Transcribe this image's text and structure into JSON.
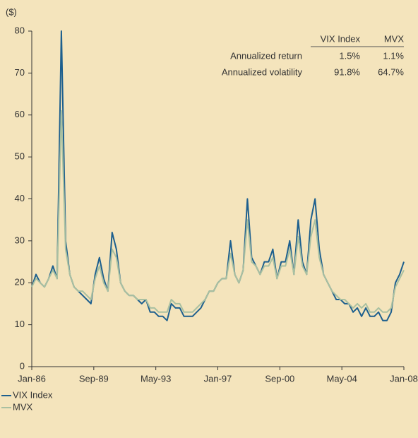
{
  "chart_data": {
    "type": "line",
    "ylabel": "($)",
    "x": [
      "1986-01",
      "1986-04",
      "1986-07",
      "1986-10",
      "1987-01",
      "1987-04",
      "1987-07",
      "1987-10",
      "1988-01",
      "1988-04",
      "1988-07",
      "1988-10",
      "1989-01",
      "1989-04",
      "1989-07",
      "1989-10",
      "1990-01",
      "1990-04",
      "1990-07",
      "1990-10",
      "1991-01",
      "1991-04",
      "1991-07",
      "1991-10",
      "1992-01",
      "1992-04",
      "1992-07",
      "1992-10",
      "1993-01",
      "1993-04",
      "1993-07",
      "1993-10",
      "1994-01",
      "1994-04",
      "1994-07",
      "1994-10",
      "1995-01",
      "1995-04",
      "1995-07",
      "1995-10",
      "1996-01",
      "1996-04",
      "1996-07",
      "1996-10",
      "1997-01",
      "1997-04",
      "1997-07",
      "1997-10",
      "1998-01",
      "1998-04",
      "1998-07",
      "1998-10",
      "1999-01",
      "1999-04",
      "1999-07",
      "1999-10",
      "2000-01",
      "2000-04",
      "2000-07",
      "2000-10",
      "2001-01",
      "2001-04",
      "2001-07",
      "2001-10",
      "2002-01",
      "2002-04",
      "2002-07",
      "2002-10",
      "2003-01",
      "2003-04",
      "2003-07",
      "2003-10",
      "2004-01",
      "2004-04",
      "2004-07",
      "2004-10",
      "2005-01",
      "2005-04",
      "2005-07",
      "2005-10",
      "2006-01",
      "2006-04",
      "2006-07",
      "2006-10",
      "2007-01",
      "2007-04",
      "2007-07",
      "2007-10",
      "2008-01"
    ],
    "series": [
      {
        "name": "VIX Index",
        "color": "#1d5f8e",
        "values": [
          19,
          22,
          20,
          19,
          21,
          24,
          21,
          80,
          30,
          22,
          19,
          18,
          17,
          16,
          15,
          22,
          26,
          21,
          18,
          32,
          28,
          20,
          18,
          17,
          17,
          16,
          15,
          16,
          13,
          13,
          12,
          12,
          11,
          15,
          14,
          14,
          12,
          12,
          12,
          13,
          14,
          16,
          18,
          18,
          20,
          21,
          21,
          30,
          22,
          20,
          23,
          40,
          26,
          24,
          22,
          25,
          25,
          28,
          21,
          25,
          25,
          30,
          22,
          35,
          25,
          22,
          35,
          40,
          28,
          22,
          20,
          18,
          16,
          16,
          15,
          15,
          13,
          14,
          12,
          14,
          12,
          12,
          13,
          11,
          11,
          13,
          20,
          22,
          25
        ]
      },
      {
        "name": "MVX",
        "color": "#a9c0a1",
        "values": [
          19,
          21,
          20,
          19,
          21,
          23,
          21,
          61,
          28,
          22,
          19,
          18,
          18,
          17,
          16,
          21,
          24,
          20,
          18,
          28,
          26,
          20,
          18,
          17,
          17,
          16,
          16,
          16,
          14,
          14,
          13,
          13,
          13,
          16,
          15,
          15,
          13,
          13,
          13,
          14,
          15,
          16,
          18,
          18,
          20,
          21,
          21,
          27,
          22,
          20,
          23,
          35,
          25,
          24,
          22,
          24,
          24,
          26,
          21,
          24,
          24,
          28,
          22,
          31,
          24,
          22,
          31,
          35,
          26,
          22,
          20,
          18,
          17,
          16,
          16,
          15,
          14,
          15,
          14,
          15,
          13,
          13,
          14,
          13,
          13,
          14,
          19,
          21,
          23
        ]
      }
    ],
    "xticks": [
      {
        "value": "1986-01",
        "label": "Jan-86"
      },
      {
        "value": "1989-09",
        "label": "Sep-89"
      },
      {
        "value": "1993-05",
        "label": "May-93"
      },
      {
        "value": "1997-01",
        "label": "Jan-97"
      },
      {
        "value": "2000-09",
        "label": "Sep-00"
      },
      {
        "value": "2004-05",
        "label": "May-04"
      },
      {
        "value": "2008-01",
        "label": "Jan-08"
      }
    ],
    "ylim": [
      0,
      80
    ],
    "yticks": [
      0,
      10,
      20,
      30,
      40,
      50,
      60,
      70,
      80
    ],
    "grid": false,
    "table": {
      "columns": [
        "VIX Index",
        "MVX"
      ],
      "rows": [
        {
          "label": "Annualized return",
          "values": [
            "1.5%",
            "1.1%"
          ]
        },
        {
          "label": "Annualized volatility",
          "values": [
            "91.8%",
            "64.7%"
          ]
        }
      ]
    }
  }
}
